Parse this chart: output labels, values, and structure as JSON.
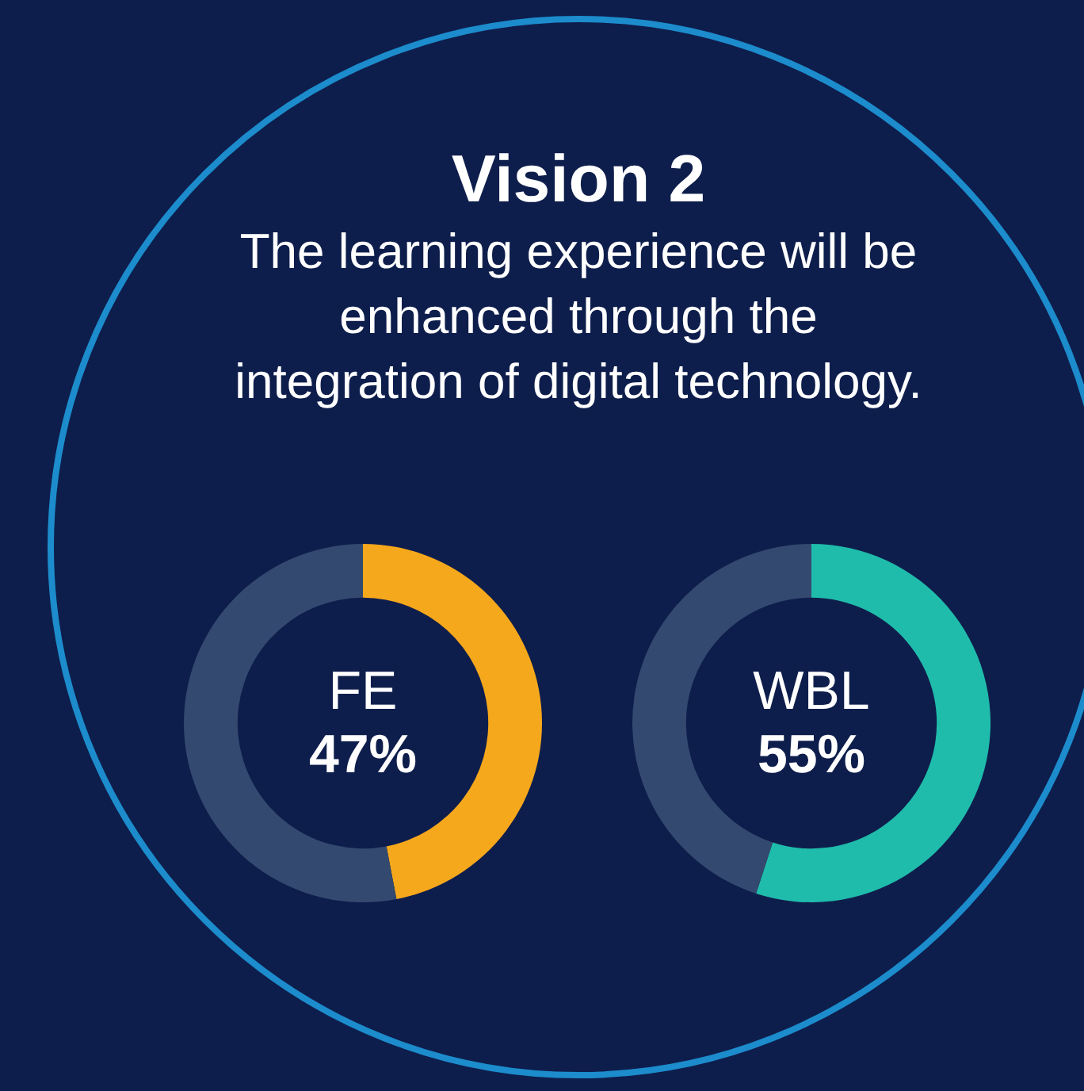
{
  "chart_data": [
    {
      "type": "other",
      "title": "Vision 2",
      "subtitle": "The learning experience will be enhanced through the integration of digital technology."
    },
    {
      "type": "donut",
      "categories": [
        "FE",
        null
      ],
      "values": [
        47,
        53
      ],
      "colors": [
        "#f6a81c",
        "#34496f"
      ],
      "value_labels": [
        "47%",
        null
      ]
    },
    {
      "type": "donut",
      "categories": [
        "WBL",
        null
      ],
      "values": [
        55,
        45
      ],
      "colors": [
        "#1fbcab",
        "#34496f"
      ],
      "value_labels": [
        "55%",
        null
      ]
    }
  ]
}
